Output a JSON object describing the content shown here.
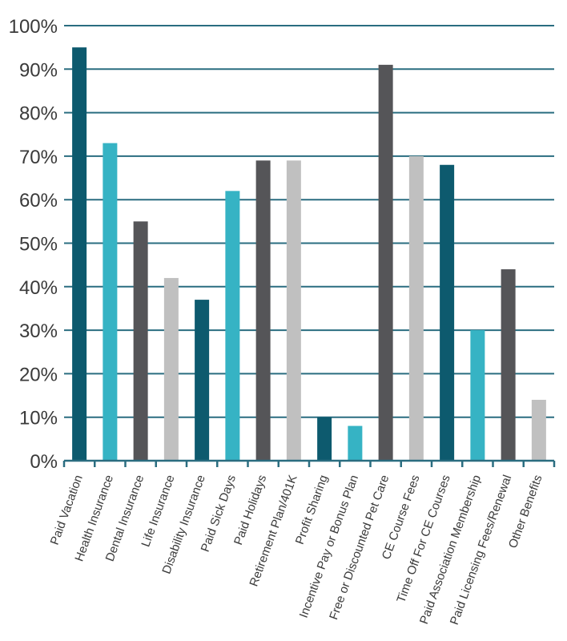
{
  "chart_data": {
    "type": "bar",
    "title": "",
    "xlabel": "",
    "ylabel": "",
    "ylim": [
      0,
      100
    ],
    "yticks": [
      0,
      10,
      20,
      30,
      40,
      50,
      60,
      70,
      80,
      90,
      100
    ],
    "ytick_labels": [
      "0%",
      "10%",
      "20%",
      "30%",
      "40%",
      "50%",
      "60%",
      "70%",
      "80%",
      "90%",
      "100%"
    ],
    "grid": true,
    "legend": "none",
    "categories": [
      "Paid Vacation",
      "Health Insurance",
      "Dental Insurance",
      "Life Insurance",
      "Disability Insurance",
      "Paid Sick Days",
      "Paid Holidays",
      "Retirement Plan/401K",
      "Profit Sharing",
      "Incentive Pay or Bonus Plan",
      "Free or Discounted Pet Care",
      "CE Course Fees",
      "Time Off For CE Courses",
      "Paid Association Membership",
      "Paid Licensing Fees/Renewal",
      "Other Benefits"
    ],
    "values": [
      95,
      73,
      55,
      42,
      37,
      62,
      69,
      69,
      10,
      8,
      91,
      70,
      68,
      30,
      44,
      14
    ],
    "bar_colors": [
      "#0d5a6e",
      "#36b3c4",
      "#555558",
      "#c0c0c0",
      "#0d5a6e",
      "#36b3c4",
      "#555558",
      "#c0c0c0",
      "#0d5a6e",
      "#36b3c4",
      "#555558",
      "#c0c0c0",
      "#0d5a6e",
      "#36b3c4",
      "#555558",
      "#c0c0c0"
    ],
    "grid_color": "#2a6d80"
  }
}
